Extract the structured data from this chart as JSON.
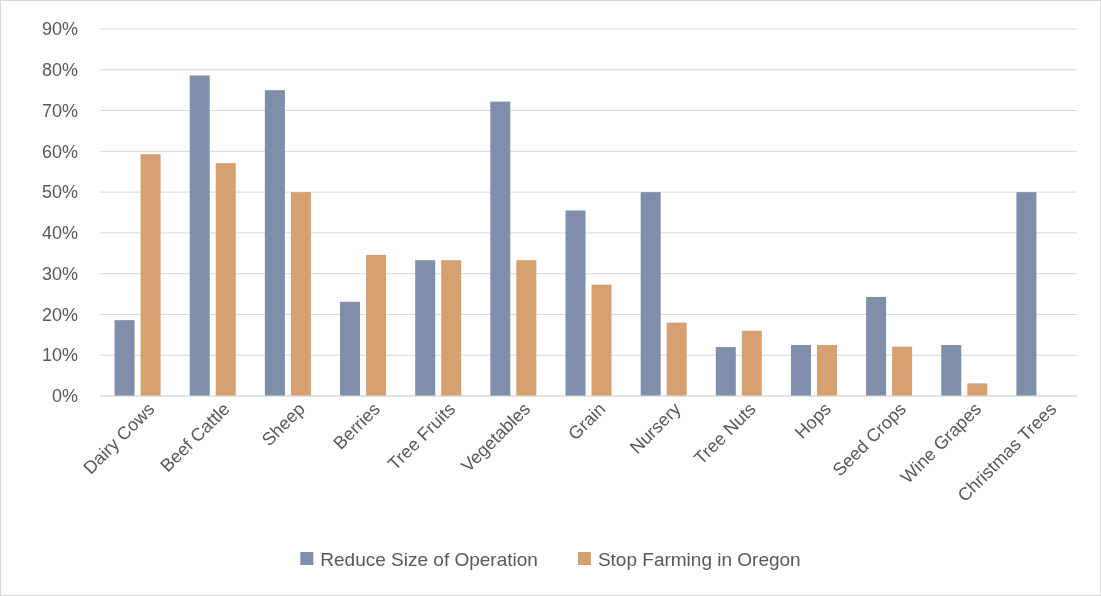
{
  "chart_data": {
    "type": "bar",
    "categories": [
      "Dairy Cows",
      "Beef Cattle",
      "Sheep",
      "Berries",
      "Tree Fruits",
      "Vegetables",
      "Grain",
      "Nursery",
      "Tree Nuts",
      "Hops",
      "Seed Crops",
      "Wine Grapes",
      "Christmas Trees"
    ],
    "series": [
      {
        "name": "Reduce Size of Operation",
        "color": "#7f8fa9",
        "values": [
          18.6,
          78.6,
          75,
          23.1,
          33.3,
          72.2,
          45.5,
          50,
          12,
          12.5,
          24.3,
          12.5,
          50
        ]
      },
      {
        "name": "Stop Farming in Oregon",
        "color": "#d5a170",
        "values": [
          59.3,
          57.1,
          50,
          34.6,
          33.3,
          33.3,
          27.3,
          18,
          16,
          12.5,
          12.1,
          3.1,
          0
        ]
      }
    ],
    "ylim": [
      0,
      90
    ],
    "yticks": [
      {
        "value": 0,
        "label": "0%"
      },
      {
        "value": 10,
        "label": "10%"
      },
      {
        "value": 20,
        "label": "20%"
      },
      {
        "value": 30,
        "label": "30%"
      },
      {
        "value": 40,
        "label": "40%"
      },
      {
        "value": 50,
        "label": "50%"
      },
      {
        "value": 60,
        "label": "60%"
      },
      {
        "value": 70,
        "label": "70%"
      },
      {
        "value": 80,
        "label": "80%"
      },
      {
        "value": 90,
        "label": "90%"
      }
    ],
    "grid": "y",
    "legend": "bottom"
  }
}
